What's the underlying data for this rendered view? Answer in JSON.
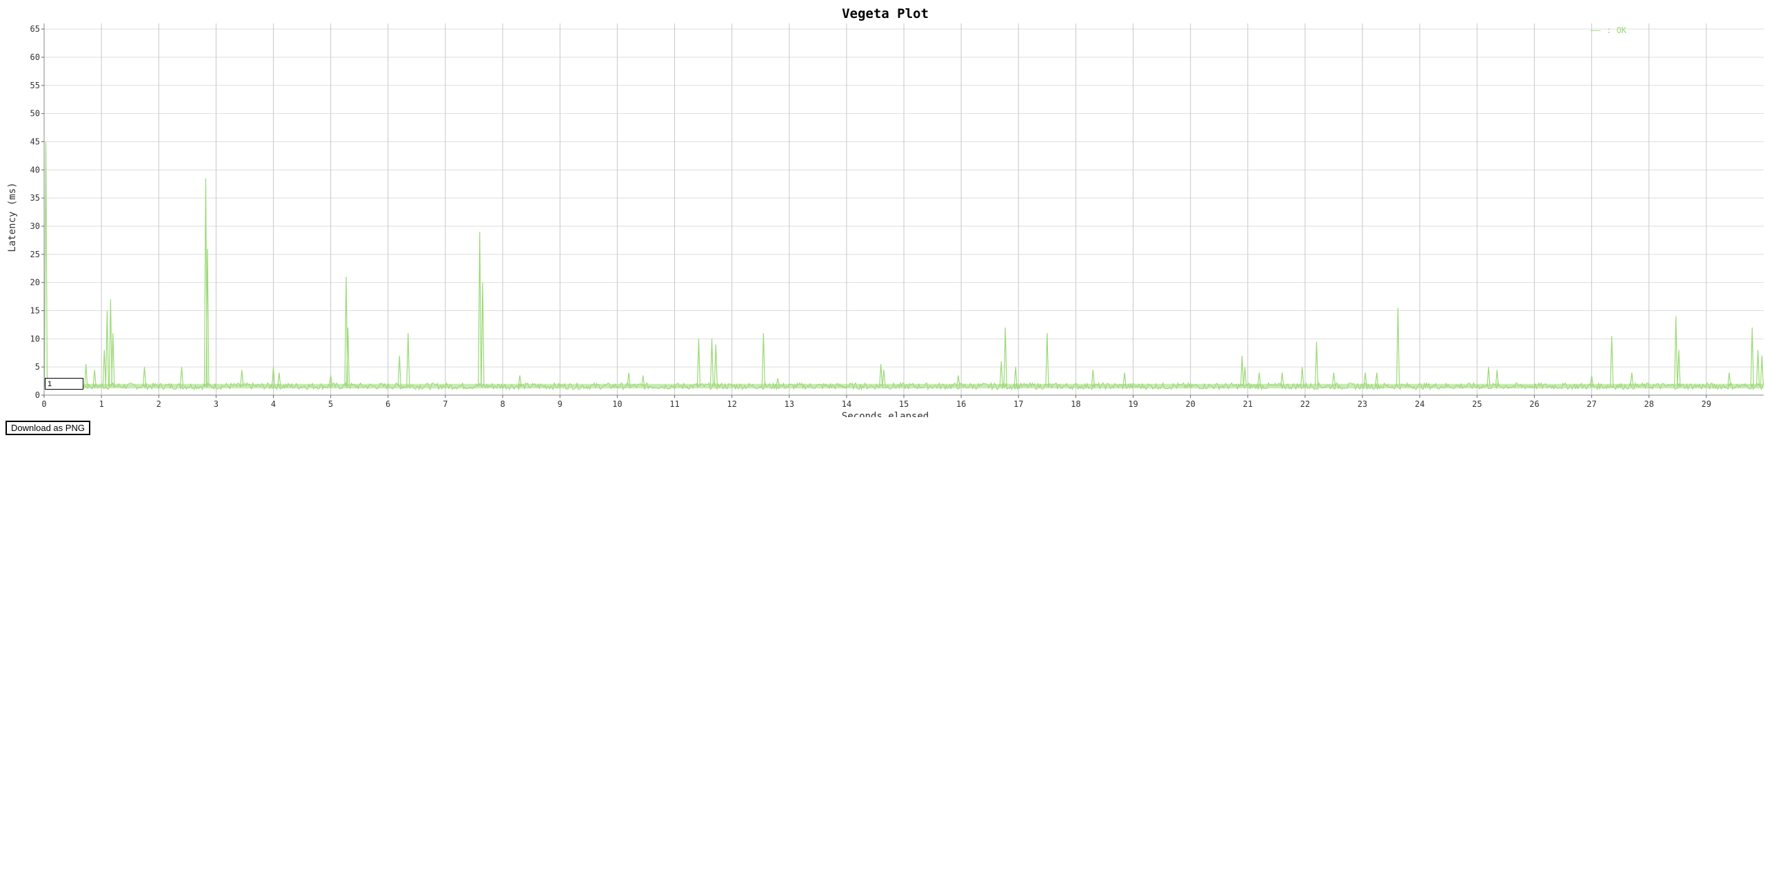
{
  "chart_data": {
    "type": "line",
    "title": "Vegeta Plot",
    "xlabel": "Seconds elapsed",
    "ylabel": "Latency (ms)",
    "xlim": [
      0,
      30
    ],
    "ylim": [
      0,
      66
    ],
    "x_ticks": [
      0,
      1,
      2,
      3,
      4,
      5,
      6,
      7,
      8,
      9,
      10,
      11,
      12,
      13,
      14,
      15,
      16,
      17,
      18,
      19,
      20,
      21,
      22,
      23,
      24,
      25,
      26,
      27,
      28,
      29
    ],
    "y_ticks": [
      0,
      5,
      10,
      15,
      20,
      25,
      30,
      35,
      40,
      45,
      50,
      55,
      60,
      65
    ],
    "grid": true,
    "legend": "top-right",
    "baseline_ms": 1.6,
    "series": [
      {
        "name": "OK",
        "color": "#9ad975",
        "peaks": [
          [
            0.03,
            45
          ],
          [
            0.15,
            3
          ],
          [
            0.73,
            5.5
          ],
          [
            0.88,
            4.5
          ],
          [
            1.05,
            8
          ],
          [
            1.1,
            15
          ],
          [
            1.16,
            17
          ],
          [
            1.2,
            11
          ],
          [
            1.75,
            5
          ],
          [
            2.4,
            5
          ],
          [
            2.82,
            38.5
          ],
          [
            2.85,
            26
          ],
          [
            3.45,
            4.5
          ],
          [
            4.0,
            5
          ],
          [
            4.1,
            4
          ],
          [
            5.0,
            3.5
          ],
          [
            5.27,
            21
          ],
          [
            5.3,
            12
          ],
          [
            6.2,
            7
          ],
          [
            6.35,
            11
          ],
          [
            7.6,
            29
          ],
          [
            7.65,
            20
          ],
          [
            8.3,
            3.5
          ],
          [
            10.2,
            4
          ],
          [
            10.45,
            3.5
          ],
          [
            11.42,
            10
          ],
          [
            11.65,
            10
          ],
          [
            11.72,
            9
          ],
          [
            12.55,
            11
          ],
          [
            12.8,
            3
          ],
          [
            14.6,
            5.5
          ],
          [
            14.65,
            4.5
          ],
          [
            15.95,
            3.5
          ],
          [
            16.7,
            6
          ],
          [
            16.77,
            12
          ],
          [
            16.95,
            5
          ],
          [
            17.5,
            11
          ],
          [
            18.3,
            4.5
          ],
          [
            18.85,
            4
          ],
          [
            20.9,
            7
          ],
          [
            20.95,
            5
          ],
          [
            21.2,
            4
          ],
          [
            21.6,
            4
          ],
          [
            21.95,
            5
          ],
          [
            22.2,
            9.5
          ],
          [
            22.5,
            4
          ],
          [
            23.05,
            4
          ],
          [
            23.25,
            4
          ],
          [
            23.62,
            15.5
          ],
          [
            25.2,
            5
          ],
          [
            25.35,
            4.5
          ],
          [
            27.0,
            3.5
          ],
          [
            27.35,
            10.5
          ],
          [
            27.7,
            4
          ],
          [
            28.47,
            14
          ],
          [
            28.52,
            8
          ],
          [
            29.4,
            4
          ],
          [
            29.8,
            12
          ],
          [
            29.9,
            8
          ],
          [
            29.97,
            7
          ]
        ]
      }
    ]
  },
  "legend": {
    "marker": "——",
    "label": ": OK"
  },
  "controls": {
    "range_value": "1",
    "download_label": "Download as PNG"
  }
}
